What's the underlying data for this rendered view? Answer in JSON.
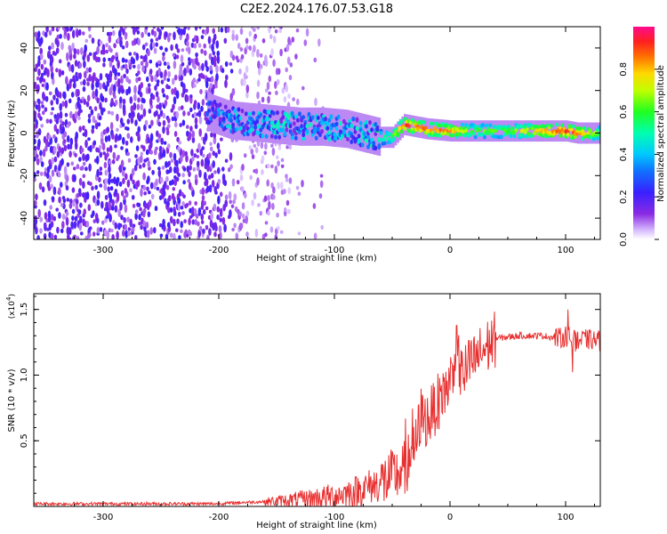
{
  "figure": {
    "title": "C2E2.2024.176.07.53.G18"
  },
  "chart_data": [
    {
      "type": "heatmap",
      "title": "C2E2.2024.176.07.53.G18",
      "xlabel": "Height of straight line (km)",
      "ylabel": "Frequency (Hz)",
      "xlim": [
        -360,
        130
      ],
      "ylim": [
        -50,
        50
      ],
      "xticks": [
        -300,
        -200,
        -100,
        0,
        100
      ],
      "yticks": [
        -40,
        -20,
        0,
        20,
        40
      ],
      "colorbar": {
        "label": "Normalized spectral amplitude",
        "range": [
          0.0,
          1.0
        ],
        "ticks": [
          "0.0",
          "0.2",
          "0.4",
          "0.6",
          "0.8"
        ],
        "tick_values": [
          0.0,
          0.2,
          0.4,
          0.6,
          0.8
        ]
      },
      "signal_ridge": {
        "x": [
          -210,
          -190,
          -170,
          -150,
          -130,
          -110,
          -90,
          -75,
          -60,
          -50,
          -40,
          -30,
          -20,
          0,
          20,
          50,
          80,
          100,
          110,
          130
        ],
        "freq": [
          10,
          6,
          5,
          4,
          3,
          3,
          2,
          0,
          -2,
          -2,
          4,
          3,
          2,
          1,
          1,
          1,
          1,
          1,
          0,
          0
        ],
        "amplitude": [
          0.35,
          0.45,
          0.45,
          0.5,
          0.5,
          0.45,
          0.5,
          0.5,
          0.55,
          0.6,
          0.95,
          0.9,
          0.9,
          0.85,
          0.65,
          0.65,
          0.85,
          0.95,
          0.9,
          0.65
        ]
      },
      "noise_region_x": [
        -360,
        -140
      ]
    },
    {
      "type": "line",
      "xlabel": "Height of straight line (km)",
      "ylabel": "SNR (10 * v/v)",
      "y_multiplier": "(x10",
      "y_multiplier_exp": "4",
      "y_multiplier_close": ")",
      "xlim": [
        -360,
        130
      ],
      "ylim": [
        0.0,
        1.62
      ],
      "xticks": [
        -300,
        -200,
        -100,
        0,
        100
      ],
      "yticks": [
        "0.5",
        "1.0",
        "1.5"
      ],
      "ytick_values": [
        0.5,
        1.0,
        1.5
      ],
      "color": "#e83030",
      "series": [
        {
          "x": [
            -360,
            -300,
            -250,
            -200,
            -180,
            -150,
            -120,
            -100,
            -80,
            -60,
            -50,
            -40,
            -30,
            -25,
            -20,
            -10,
            0,
            5,
            10,
            20,
            30,
            40,
            60,
            80,
            95,
            100,
            105,
            110,
            115,
            120,
            130
          ],
          "y": [
            0.02,
            0.02,
            0.02,
            0.02,
            0.03,
            0.04,
            0.06,
            0.08,
            0.12,
            0.18,
            0.22,
            0.28,
            0.45,
            0.7,
            0.65,
            0.8,
            0.95,
            1.2,
            1.0,
            1.1,
            1.2,
            1.28,
            1.3,
            1.3,
            1.28,
            1.3,
            1.28,
            1.25,
            1.27,
            1.27,
            1.26
          ]
        }
      ]
    }
  ]
}
